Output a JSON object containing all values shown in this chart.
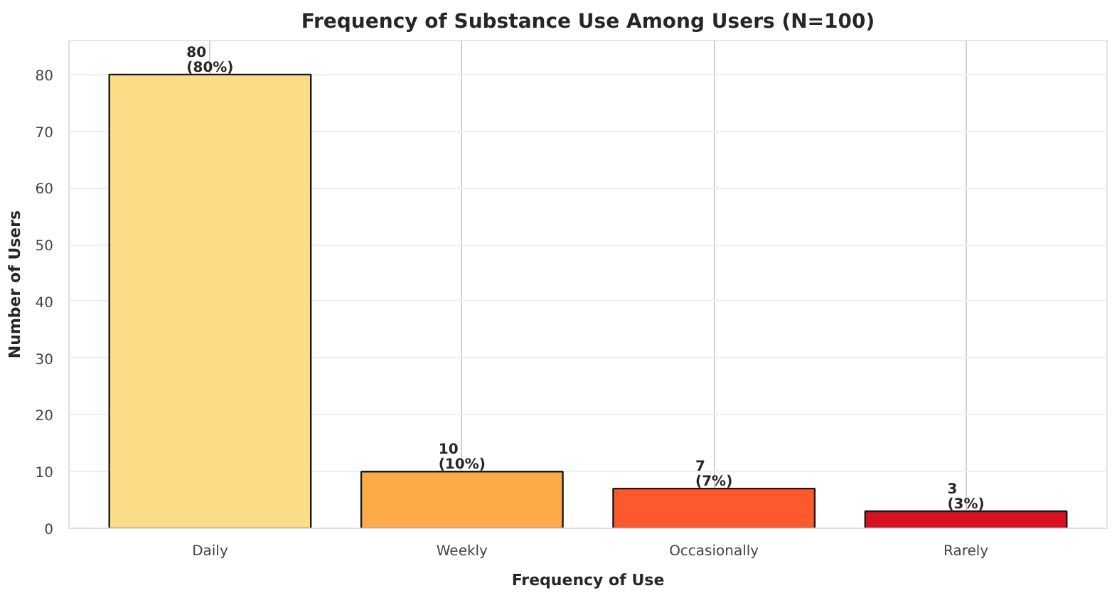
{
  "chart_data": {
    "type": "bar",
    "title": "Frequency of Substance Use Among Users (N=100)",
    "xlabel": "Frequency of Use",
    "ylabel": "Number of Users",
    "categories": [
      "Daily",
      "Weekly",
      "Occasionally",
      "Rarely"
    ],
    "values": [
      80,
      10,
      7,
      3
    ],
    "colors": [
      "#fddc88",
      "#fdaa48",
      "#fc5a2d",
      "#d7111f"
    ],
    "value_labels": [
      "80\n(80%)",
      "10\n(10%)",
      "7\n(7%)",
      "3\n(3%)"
    ],
    "ylim": [
      0,
      86
    ],
    "yticks": [
      0,
      10,
      20,
      30,
      40,
      50,
      60,
      70,
      80
    ],
    "grid": true
  }
}
